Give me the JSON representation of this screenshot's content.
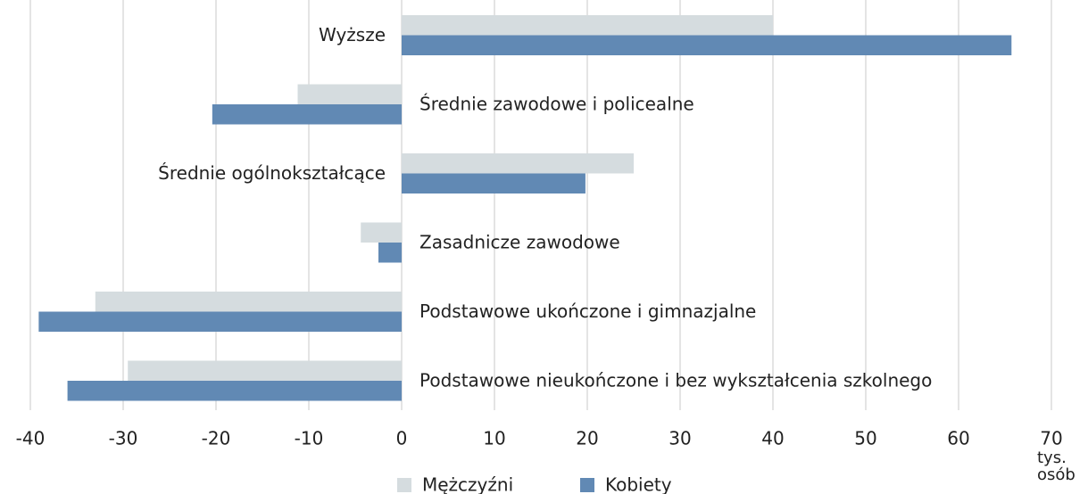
{
  "chart_data": {
    "type": "bar",
    "orientation": "horizontal",
    "categories": [
      "Wyższe",
      "Średnie zawodowe i policealne",
      "Średnie ogólnokształcące",
      "Zasadnicze zawodowe",
      "Podstawowe ukończone i gimnazjalne",
      "Podstawowe nieukończone i bez wykształcenia szkolnego"
    ],
    "series": [
      {
        "name": "Mężczyźni",
        "color": "#d5dcdf",
        "values": [
          40.0,
          -11.2,
          25.0,
          -4.4,
          -33.0,
          -29.5
        ]
      },
      {
        "name": "Kobiety",
        "color": "#6189b4",
        "values": [
          65.7,
          -20.4,
          19.8,
          -2.5,
          -39.1,
          -36.0
        ]
      }
    ],
    "x_label": "tys. osób",
    "xlim": [
      -40,
      70
    ],
    "xticks": [
      -40,
      -30,
      -20,
      -10,
      0,
      10,
      20,
      30,
      40,
      50,
      60,
      70
    ],
    "grid": true,
    "legend": "bottom"
  }
}
